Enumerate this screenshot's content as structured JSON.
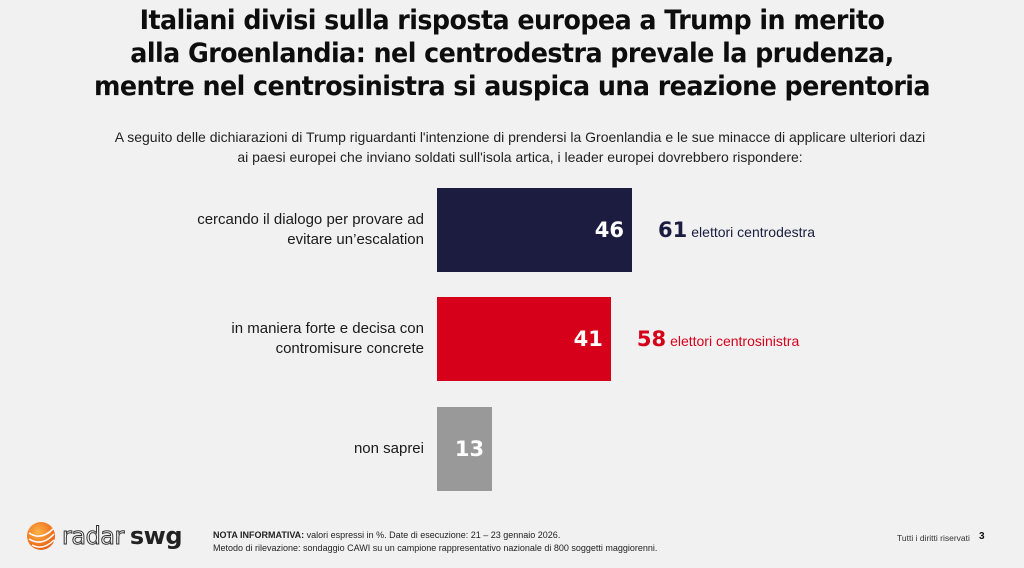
{
  "title_lines": [
    "Italiani divisi sulla risposta europea a Trump in merito",
    "alla Groenlandia: nel centrodestra prevale la prudenza,",
    "mentre nel centrosinistra si auspica una reazione perentoria"
  ],
  "subtitle_lines": [
    "A seguito delle dichiarazioni di Trump riguardanti l'intenzione di prendersi la Groenlandia e le sue minacce di applicare ulteriori dazi",
    "ai paesi europei che inviano soldati sull'isola artica, i leader europei dovrebbero rispondere:"
  ],
  "chart_data": {
    "type": "bar",
    "orientation": "horizontal",
    "title": "Italiani divisi sulla risposta europea a Trump in merito alla Groenlandia: nel centrodestra prevale la prudenza, mentre nel centrosinistra si auspica una reazione perentoria",
    "xlabel": "",
    "ylabel": "",
    "unit": "%",
    "xlim": [
      0,
      100
    ],
    "grid": false,
    "categories": [
      "cercando il dialogo per provare ad evitare un’escalation",
      "in maniera forte e decisa con contromisure concrete",
      "non saprei"
    ],
    "category_lines": [
      [
        "cercando il dialogo per provare ad",
        "evitare un’escalation"
      ],
      [
        "in maniera forte e decisa con",
        "contromisure concrete"
      ],
      [
        "non saprei"
      ]
    ],
    "values": [
      46,
      41,
      13
    ],
    "colors": [
      "#1b1c40",
      "#d7001a",
      "#999999"
    ],
    "annotations": [
      {
        "category_index": 0,
        "value": "61",
        "text": "elettori centrodestra",
        "color": "#1b1c40"
      },
      {
        "category_index": 1,
        "value": "58",
        "text": "elettori centrosinistra",
        "color": "#d7001a"
      }
    ]
  },
  "footer": {
    "logo_part1": "radar",
    "logo_part2": "swg",
    "note_label": "NOTA INFORMATIVA:",
    "note_line1": " valori espressi in %. Date di esecuzione: 21 – 23 gennaio 2026.",
    "note_line2": "Metodo di rilevazione: sondaggio CAWI su un campione rappresentativo nazionale di 800 soggetti maggiorenni.",
    "rights": "Tutti i diritti riservati",
    "page_number": "3"
  }
}
